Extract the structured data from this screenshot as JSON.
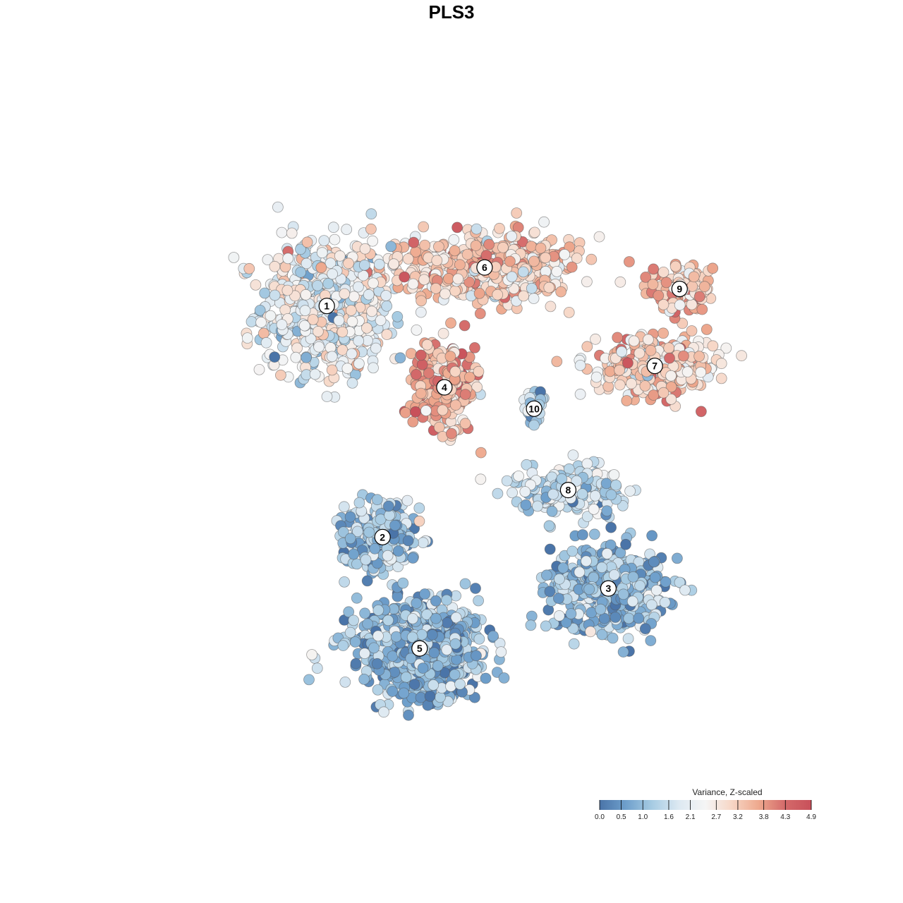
{
  "chart_data": {
    "type": "scatter",
    "title": "PLS3",
    "xlabel": "",
    "ylabel": "",
    "grid": false,
    "legend": {
      "title": "Variance, Z-scaled",
      "placement": "bottom-right",
      "range": [
        0.0,
        4.9
      ],
      "ticks": [
        "0.0",
        "0.5",
        "1.0",
        "1.6",
        "2.1",
        "2.7",
        "3.2",
        "3.8",
        "4.3",
        "4.9"
      ],
      "colors": [
        "#4a74a8",
        "#6fa0cc",
        "#a8cce3",
        "#dde9f2",
        "#f5f5f5",
        "#f7d6c5",
        "#eea98e",
        "#d46a6a",
        "#c8505a"
      ]
    },
    "clusters": [
      {
        "label": "1",
        "x": -22.0,
        "y": 19.5,
        "mean_value": 2.2,
        "spread": [
          9.5,
          7.0
        ],
        "n": 700
      },
      {
        "label": "2",
        "x": -13.0,
        "y": -7.5,
        "mean_value": 1.2,
        "spread": [
          5.5,
          4.0
        ],
        "n": 260
      },
      {
        "label": "3",
        "x": 23.5,
        "y": -13.5,
        "mean_value": 1.0,
        "spread": [
          8.5,
          4.5
        ],
        "n": 480
      },
      {
        "label": "4",
        "x": -3.0,
        "y": 10.0,
        "mean_value": 3.5,
        "spread": [
          4.5,
          4.5
        ],
        "n": 330
      },
      {
        "label": "5",
        "x": -7.0,
        "y": -20.5,
        "mean_value": 0.9,
        "spread": [
          9.0,
          4.5
        ],
        "n": 820
      },
      {
        "label": "6",
        "x": 3.5,
        "y": 24.0,
        "mean_value": 3.1,
        "spread": [
          13.0,
          3.5
        ],
        "n": 560
      },
      {
        "label": "7",
        "x": 31.0,
        "y": 12.5,
        "mean_value": 3.1,
        "spread": [
          9.0,
          3.0
        ],
        "n": 330
      },
      {
        "label": "8",
        "x": 17.0,
        "y": -2.0,
        "mean_value": 1.6,
        "spread": [
          7.5,
          2.5
        ],
        "n": 230
      },
      {
        "label": "9",
        "x": 35.0,
        "y": 21.5,
        "mean_value": 3.3,
        "spread": [
          4.5,
          2.5
        ],
        "n": 140
      },
      {
        "label": "10",
        "x": 11.5,
        "y": 7.5,
        "mean_value": 1.2,
        "spread": [
          1.4,
          2.0
        ],
        "n": 45
      }
    ],
    "xlim": [
      -52,
      54
    ],
    "ylim": [
      -35,
      40
    ]
  }
}
